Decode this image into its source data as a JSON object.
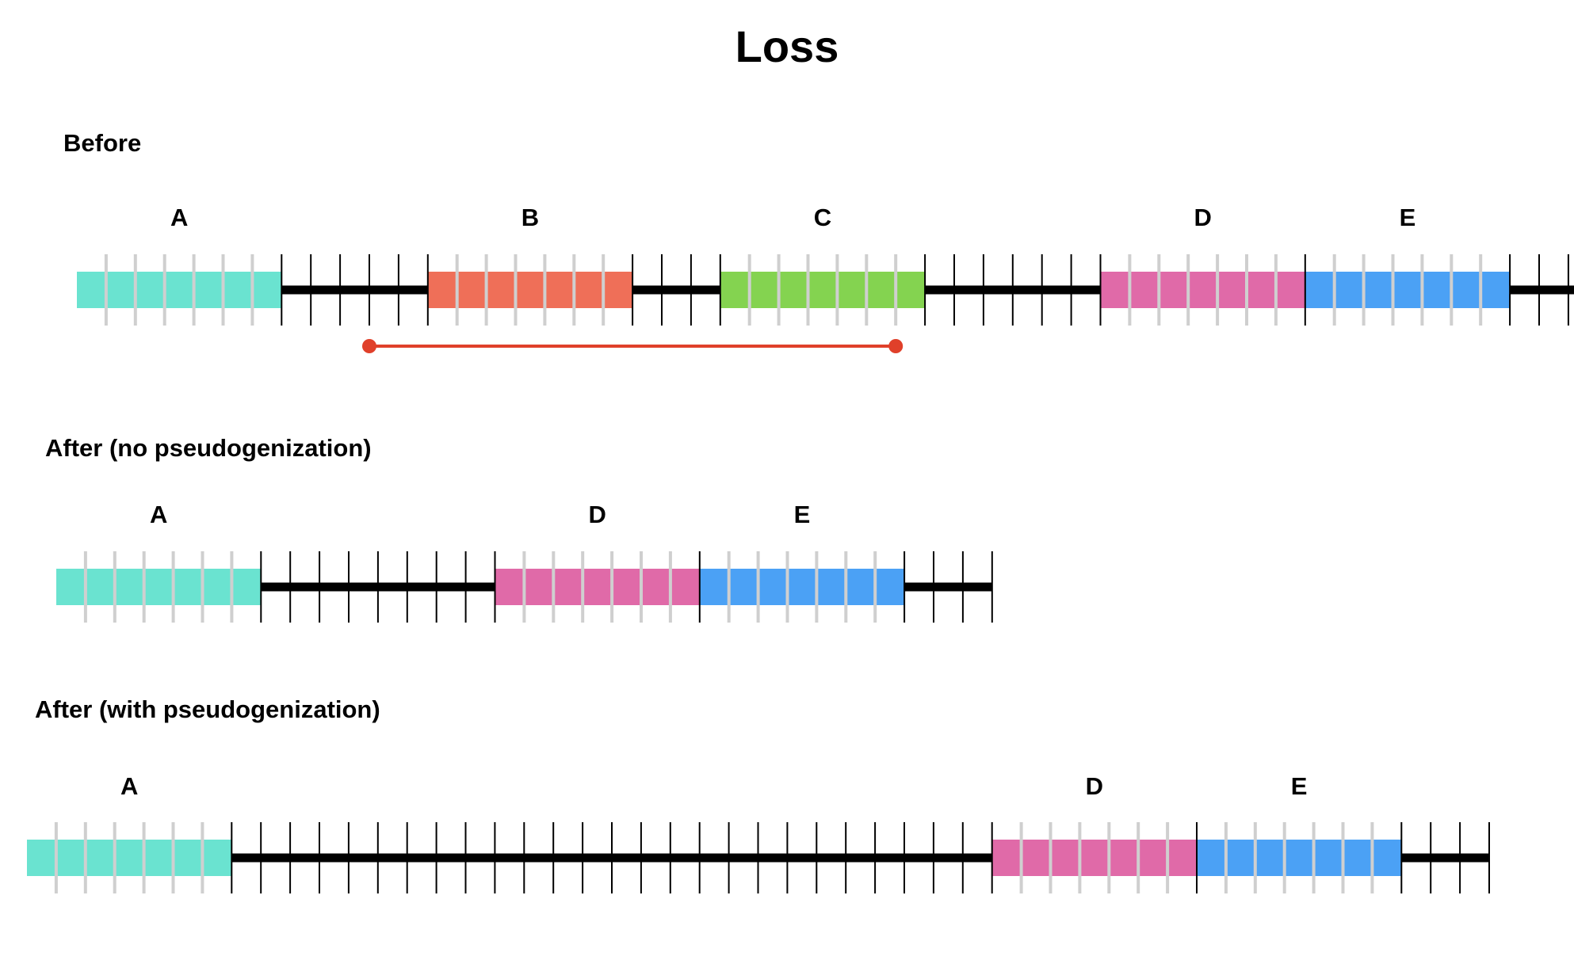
{
  "title": "Loss",
  "colors": {
    "A": "#6ae3d0",
    "B": "#ef6f58",
    "C": "#84d350",
    "D": "#e06aa8",
    "E": "#4ba1f5",
    "backbone": "#000000",
    "gene_tick": "#cfcfcf",
    "deletion_marker": "#e0402a"
  },
  "units": {
    "gene_length": 7
  },
  "rows": [
    {
      "id": "before",
      "heading": "Before",
      "segments": [
        {
          "kind": "gene",
          "label": "A"
        },
        {
          "kind": "intergenic",
          "units": 5
        },
        {
          "kind": "gene",
          "label": "B"
        },
        {
          "kind": "intergenic",
          "units": 3
        },
        {
          "kind": "gene",
          "label": "C"
        },
        {
          "kind": "intergenic",
          "units": 6
        },
        {
          "kind": "gene",
          "label": "D"
        },
        {
          "kind": "gene",
          "label": "E"
        },
        {
          "kind": "intergenic",
          "units": 3
        }
      ],
      "deletion": {
        "from_unit": 10,
        "to_unit": 28
      }
    },
    {
      "id": "after-no-pseudo",
      "heading": "After (no pseudogenization)",
      "segments": [
        {
          "kind": "gene",
          "label": "A"
        },
        {
          "kind": "intergenic",
          "units": 8
        },
        {
          "kind": "gene",
          "label": "D"
        },
        {
          "kind": "gene",
          "label": "E"
        },
        {
          "kind": "intergenic",
          "units": 3
        }
      ]
    },
    {
      "id": "after-with-pseudo",
      "heading": "After (with pseudogenization)",
      "segments": [
        {
          "kind": "gene",
          "label": "A"
        },
        {
          "kind": "intergenic",
          "units": 26
        },
        {
          "kind": "gene",
          "label": "D"
        },
        {
          "kind": "gene",
          "label": "E"
        },
        {
          "kind": "intergenic",
          "units": 3
        }
      ]
    }
  ]
}
